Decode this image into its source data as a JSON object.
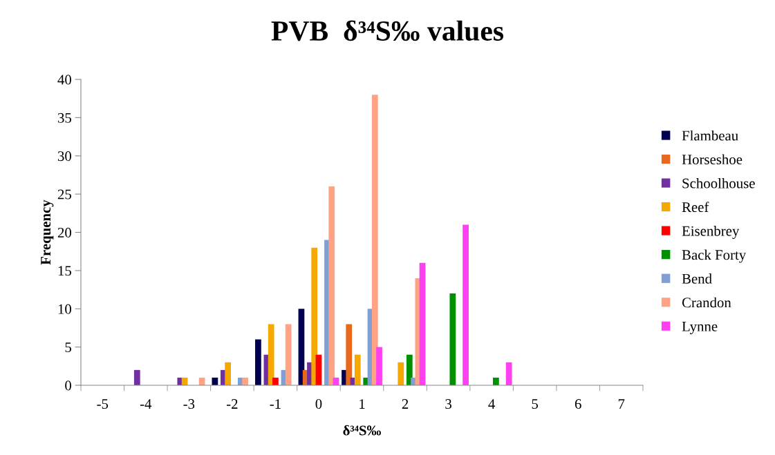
{
  "chart_data": {
    "type": "bar",
    "title": "PVB  δ³⁴S‰ values",
    "xlabel": "δ³⁴S‰",
    "ylabel": "Frequency",
    "categories": [
      "-5",
      "-4",
      "-3",
      "-2",
      "-1",
      "0",
      "1",
      "2",
      "3",
      "4",
      "5",
      "6",
      "7"
    ],
    "series": [
      {
        "name": "Flambeau",
        "color": "#000050",
        "values": [
          0,
          0,
          0,
          1,
          6,
          10,
          2,
          0,
          0,
          0,
          0,
          0,
          0
        ]
      },
      {
        "name": "Horseshoe",
        "color": "#e8681e",
        "values": [
          0,
          0,
          0,
          0,
          0,
          2,
          8,
          0,
          0,
          0,
          0,
          0,
          0
        ]
      },
      {
        "name": "Schoolhouse",
        "color": "#7030a0",
        "values": [
          0,
          2,
          1,
          2,
          4,
          3,
          1,
          0,
          0,
          0,
          0,
          0,
          0
        ]
      },
      {
        "name": "Reef",
        "color": "#f5a800",
        "values": [
          0,
          0,
          1,
          3,
          8,
          18,
          4,
          3,
          0,
          0,
          0,
          0,
          0
        ]
      },
      {
        "name": "Eisenbrey",
        "color": "#ff0000",
        "values": [
          0,
          0,
          0,
          0,
          1,
          4,
          0,
          0,
          0,
          0,
          0,
          0,
          0
        ]
      },
      {
        "name": "Back Forty",
        "color": "#009000",
        "values": [
          0,
          0,
          0,
          0,
          0,
          0,
          1,
          4,
          12,
          1,
          0,
          0,
          0
        ]
      },
      {
        "name": "Bend",
        "color": "#7f9fd5",
        "values": [
          0,
          0,
          0,
          1,
          2,
          19,
          10,
          1,
          0,
          0,
          0,
          0,
          0
        ]
      },
      {
        "name": "Crandon",
        "color": "#ffa384",
        "values": [
          0,
          0,
          1,
          1,
          8,
          26,
          38,
          14,
          0,
          0,
          0,
          0,
          0
        ]
      },
      {
        "name": "Lynne",
        "color": "#ff40f0",
        "values": [
          0,
          0,
          0,
          0,
          0,
          1,
          5,
          16,
          21,
          3,
          0,
          0,
          0
        ]
      }
    ],
    "ylim": [
      0,
      40
    ],
    "yticks": [
      0,
      5,
      10,
      15,
      20,
      25,
      30,
      35,
      40
    ],
    "grid": false,
    "legend": "right"
  }
}
